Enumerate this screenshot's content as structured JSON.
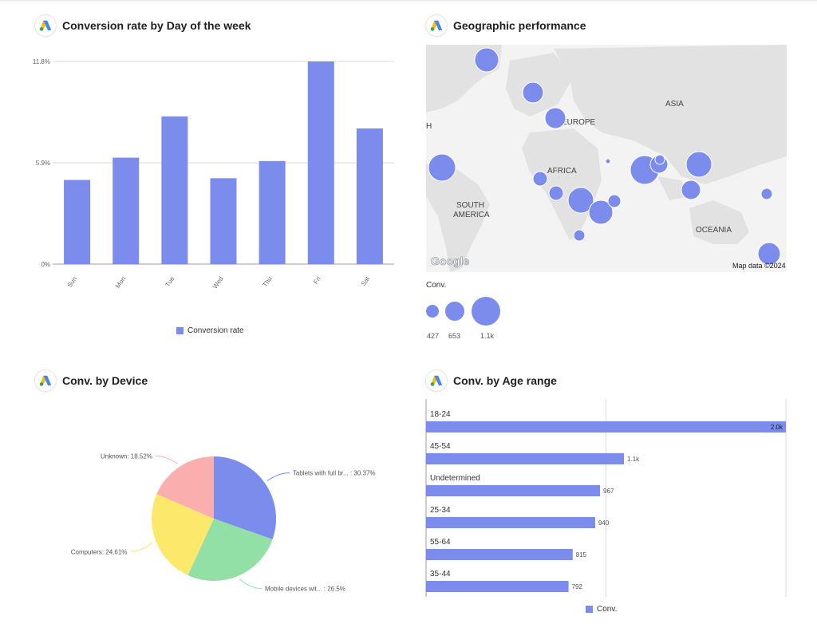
{
  "colors": {
    "accent": "#7b8ced",
    "grid": "#d9d9d9",
    "map_land": "#e6e6e6",
    "map_water": "#f4f4f4"
  },
  "panels": {
    "conversion_by_day": {
      "title": "Conversion rate by Day of the week",
      "legend": "Conversion rate"
    },
    "geo": {
      "title": "Geographic performance",
      "map_labels": [
        "ASIA",
        "EUROPE",
        "AFRICA",
        "SOUTH\nAMERICA",
        "OCEANIA"
      ],
      "attribution": "Map data ©2024",
      "google": "Google",
      "conv_legend_title": "Conv.",
      "conv_legend_values": [
        "427",
        "653",
        "1.1k"
      ]
    },
    "device": {
      "title": "Conv. by Device"
    },
    "age": {
      "title": "Conv. by Age range",
      "legend": "Conv."
    }
  },
  "chart_data": [
    {
      "type": "bar",
      "title": "Conversion rate by Day of the week",
      "categories": [
        "Sun",
        "Mon",
        "Tue",
        "Wed",
        "Thu",
        "Fri",
        "Sat"
      ],
      "series": [
        {
          "name": "Conversion rate",
          "values": [
            4.9,
            6.2,
            8.6,
            5.0,
            6.0,
            11.8,
            7.9
          ]
        }
      ],
      "y_ticks": [
        "0%",
        "5.9%",
        "11.8%"
      ],
      "ylim": [
        0,
        11.8
      ],
      "grid": true,
      "legend": "bottom"
    },
    {
      "type": "pie",
      "title": "Conv. by Device",
      "slices": [
        {
          "label": "Tablets with full br... : 30.37%",
          "value": 30.37,
          "color": "#7b8ced"
        },
        {
          "label": "Mobile devices wit... : 26.5%",
          "value": 26.5,
          "color": "#93e0a6"
        },
        {
          "label": "Computers: 24.61%",
          "value": 24.61,
          "color": "#fce86b"
        },
        {
          "label": "Unknown: 18.52%",
          "value": 18.52,
          "color": "#fbaeae"
        }
      ]
    },
    {
      "type": "bar",
      "orientation": "horizontal",
      "title": "Conv. by Age range",
      "categories": [
        "18-24",
        "45-54",
        "Undetermined",
        "25-34",
        "55-64",
        "35-44"
      ],
      "series": [
        {
          "name": "Conv.",
          "values": [
            2000,
            1100,
            967,
            940,
            815,
            792
          ]
        }
      ],
      "value_labels": [
        "2.0k",
        "1.1k",
        "967",
        "940",
        "815",
        "792"
      ],
      "xlim": [
        0,
        2000
      ],
      "grid": true,
      "legend": "bottom"
    }
  ]
}
